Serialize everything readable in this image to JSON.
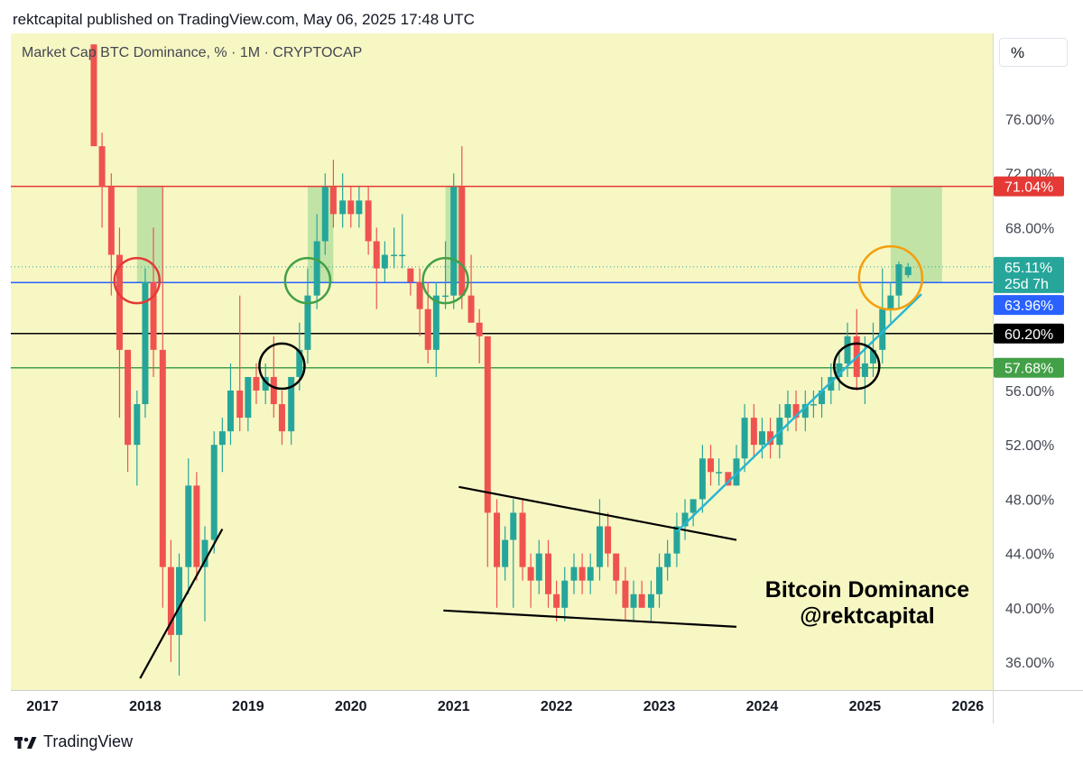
{
  "header": {
    "publisher": "rektcapital published on TradingView.com, May 06, 2025 17:48 UTC"
  },
  "symbol_info": "Market Cap BTC Dominance, % · 1M · CRYPTOCAP",
  "unit_button": "%",
  "footer": {
    "brand": "TradingView"
  },
  "annotation": {
    "line1": "Bitcoin Dominance",
    "line2": "@rektcapital"
  },
  "colors": {
    "background": "#f7f7c4",
    "up": "#26a69a",
    "down": "#ef5350",
    "resistance": "#e53935",
    "support": "#43a047",
    "mid": "#2962ff",
    "trend": "#26b6d4",
    "orange": "#f59e0b",
    "zone": "#b7e1a1"
  },
  "price_badges": {
    "resistance": "71.04%",
    "current": "65.11%",
    "countdown": "25d 7h",
    "blue_level": "63.96%",
    "black_level": "60.20%",
    "green_level": "57.68%"
  },
  "chart_data": {
    "type": "candlestick",
    "ylabel": "%",
    "ylim": [
      33.5,
      82
    ],
    "y_ticks": [
      "36.00%",
      "40.00%",
      "44.00%",
      "48.00%",
      "52.00%",
      "56.00%",
      "68.00%",
      "72.00%",
      "76.00%"
    ],
    "x_ticks": [
      "2017",
      "2018",
      "2019",
      "2020",
      "2021",
      "2022",
      "2023",
      "2024",
      "2025",
      "2026"
    ],
    "horizontal_levels": [
      {
        "label": "71.04%",
        "value": 71.04,
        "color": "#e53935"
      },
      {
        "label": "63.96%",
        "value": 63.96,
        "color": "#2962ff"
      },
      {
        "label": "60.20%",
        "value": 60.2,
        "color": "#000000"
      },
      {
        "label": "57.68%",
        "value": 57.68,
        "color": "#43a047"
      }
    ],
    "candles": [
      {
        "t": 2017.5,
        "o": 85,
        "h": 86,
        "l": 74,
        "c": 74
      },
      {
        "t": 2017.58,
        "o": 74,
        "h": 75,
        "l": 68,
        "c": 71
      },
      {
        "t": 2017.67,
        "o": 71,
        "h": 72,
        "l": 63,
        "c": 66
      },
      {
        "t": 2017.75,
        "o": 66,
        "h": 68,
        "l": 54,
        "c": 59
      },
      {
        "t": 2017.83,
        "o": 59,
        "h": 59,
        "l": 50,
        "c": 52
      },
      {
        "t": 2017.92,
        "o": 52,
        "h": 56,
        "l": 49,
        "c": 55
      },
      {
        "t": 2018.0,
        "o": 55,
        "h": 65,
        "l": 54,
        "c": 64
      },
      {
        "t": 2018.08,
        "o": 64,
        "h": 68,
        "l": 57,
        "c": 59
      },
      {
        "t": 2018.17,
        "o": 59,
        "h": 71,
        "l": 40,
        "c": 43
      },
      {
        "t": 2018.25,
        "o": 43,
        "h": 45,
        "l": 36,
        "c": 38
      },
      {
        "t": 2018.33,
        "o": 38,
        "h": 44,
        "l": 35,
        "c": 43
      },
      {
        "t": 2018.42,
        "o": 43,
        "h": 51,
        "l": 41,
        "c": 49
      },
      {
        "t": 2018.5,
        "o": 49,
        "h": 50,
        "l": 42,
        "c": 43
      },
      {
        "t": 2018.58,
        "o": 43,
        "h": 46,
        "l": 39,
        "c": 45
      },
      {
        "t": 2018.67,
        "o": 45,
        "h": 53,
        "l": 44,
        "c": 52
      },
      {
        "t": 2018.75,
        "o": 52,
        "h": 54,
        "l": 50,
        "c": 53
      },
      {
        "t": 2018.83,
        "o": 53,
        "h": 58,
        "l": 52,
        "c": 56
      },
      {
        "t": 2018.92,
        "o": 56,
        "h": 63,
        "l": 53,
        "c": 54
      },
      {
        "t": 2019.0,
        "o": 54,
        "h": 57,
        "l": 53,
        "c": 57
      },
      {
        "t": 2019.08,
        "o": 57,
        "h": 58,
        "l": 55,
        "c": 56
      },
      {
        "t": 2019.17,
        "o": 56,
        "h": 58,
        "l": 55,
        "c": 57
      },
      {
        "t": 2019.25,
        "o": 57,
        "h": 60,
        "l": 54,
        "c": 55
      },
      {
        "t": 2019.33,
        "o": 55,
        "h": 56,
        "l": 52,
        "c": 53
      },
      {
        "t": 2019.42,
        "o": 53,
        "h": 57,
        "l": 52,
        "c": 57
      },
      {
        "t": 2019.5,
        "o": 57,
        "h": 61,
        "l": 56,
        "c": 59
      },
      {
        "t": 2019.58,
        "o": 59,
        "h": 65,
        "l": 58,
        "c": 63
      },
      {
        "t": 2019.67,
        "o": 63,
        "h": 69,
        "l": 62,
        "c": 67
      },
      {
        "t": 2019.75,
        "o": 67,
        "h": 72,
        "l": 66,
        "c": 71
      },
      {
        "t": 2019.83,
        "o": 71,
        "h": 73,
        "l": 68,
        "c": 69
      },
      {
        "t": 2019.92,
        "o": 69,
        "h": 72,
        "l": 68,
        "c": 70
      },
      {
        "t": 2020.0,
        "o": 70,
        "h": 71,
        "l": 68,
        "c": 69
      },
      {
        "t": 2020.08,
        "o": 69,
        "h": 71,
        "l": 68,
        "c": 70
      },
      {
        "t": 2020.17,
        "o": 70,
        "h": 71,
        "l": 66,
        "c": 67
      },
      {
        "t": 2020.25,
        "o": 67,
        "h": 68,
        "l": 62,
        "c": 65
      },
      {
        "t": 2020.33,
        "o": 65,
        "h": 67,
        "l": 64,
        "c": 66
      },
      {
        "t": 2020.42,
        "o": 66,
        "h": 68,
        "l": 65,
        "c": 66
      },
      {
        "t": 2020.5,
        "o": 66,
        "h": 69,
        "l": 65,
        "c": 66
      },
      {
        "t": 2020.58,
        "o": 65,
        "h": 65,
        "l": 63,
        "c": 64
      },
      {
        "t": 2020.67,
        "o": 64,
        "h": 65,
        "l": 60,
        "c": 62
      },
      {
        "t": 2020.75,
        "o": 62,
        "h": 64,
        "l": 58,
        "c": 59
      },
      {
        "t": 2020.83,
        "o": 59,
        "h": 64,
        "l": 57,
        "c": 63
      },
      {
        "t": 2020.92,
        "o": 63,
        "h": 67,
        "l": 62,
        "c": 63
      },
      {
        "t": 2021.0,
        "o": 63,
        "h": 72,
        "l": 62,
        "c": 71
      },
      {
        "t": 2021.08,
        "o": 71,
        "h": 74,
        "l": 62,
        "c": 63
      },
      {
        "t": 2021.17,
        "o": 63,
        "h": 66,
        "l": 61,
        "c": 61
      },
      {
        "t": 2021.25,
        "o": 61,
        "h": 62,
        "l": 58,
        "c": 60
      },
      {
        "t": 2021.33,
        "o": 60,
        "h": 60,
        "l": 43,
        "c": 47
      },
      {
        "t": 2021.42,
        "o": 47,
        "h": 48,
        "l": 40,
        "c": 43
      },
      {
        "t": 2021.5,
        "o": 43,
        "h": 46,
        "l": 42,
        "c": 45
      },
      {
        "t": 2021.58,
        "o": 45,
        "h": 48,
        "l": 40,
        "c": 47
      },
      {
        "t": 2021.67,
        "o": 47,
        "h": 48,
        "l": 42,
        "c": 43
      },
      {
        "t": 2021.75,
        "o": 43,
        "h": 44,
        "l": 40,
        "c": 42
      },
      {
        "t": 2021.83,
        "o": 42,
        "h": 45,
        "l": 41,
        "c": 44
      },
      {
        "t": 2021.92,
        "o": 44,
        "h": 45,
        "l": 40,
        "c": 41
      },
      {
        "t": 2022.0,
        "o": 41,
        "h": 42,
        "l": 39,
        "c": 40
      },
      {
        "t": 2022.08,
        "o": 40,
        "h": 43,
        "l": 39,
        "c": 42
      },
      {
        "t": 2022.17,
        "o": 42,
        "h": 44,
        "l": 41,
        "c": 43
      },
      {
        "t": 2022.25,
        "o": 43,
        "h": 44,
        "l": 41,
        "c": 42
      },
      {
        "t": 2022.33,
        "o": 42,
        "h": 44,
        "l": 41,
        "c": 43
      },
      {
        "t": 2022.42,
        "o": 43,
        "h": 48,
        "l": 42,
        "c": 46
      },
      {
        "t": 2022.5,
        "o": 46,
        "h": 47,
        "l": 43,
        "c": 44
      },
      {
        "t": 2022.58,
        "o": 44,
        "h": 44,
        "l": 41,
        "c": 42
      },
      {
        "t": 2022.67,
        "o": 42,
        "h": 43,
        "l": 39,
        "c": 40
      },
      {
        "t": 2022.75,
        "o": 40,
        "h": 42,
        "l": 39,
        "c": 41
      },
      {
        "t": 2022.83,
        "o": 41,
        "h": 42,
        "l": 40,
        "c": 40
      },
      {
        "t": 2022.92,
        "o": 40,
        "h": 42,
        "l": 39,
        "c": 41
      },
      {
        "t": 2023.0,
        "o": 41,
        "h": 44,
        "l": 40,
        "c": 43
      },
      {
        "t": 2023.08,
        "o": 43,
        "h": 45,
        "l": 42,
        "c": 44
      },
      {
        "t": 2023.17,
        "o": 44,
        "h": 47,
        "l": 43,
        "c": 46
      },
      {
        "t": 2023.25,
        "o": 46,
        "h": 48,
        "l": 45,
        "c": 47
      },
      {
        "t": 2023.33,
        "o": 47,
        "h": 48,
        "l": 46,
        "c": 48
      },
      {
        "t": 2023.42,
        "o": 48,
        "h": 52,
        "l": 47,
        "c": 51
      },
      {
        "t": 2023.5,
        "o": 51,
        "h": 52,
        "l": 49,
        "c": 50
      },
      {
        "t": 2023.58,
        "o": 50,
        "h": 51,
        "l": 49,
        "c": 50
      },
      {
        "t": 2023.67,
        "o": 50,
        "h": 50,
        "l": 49,
        "c": 49
      },
      {
        "t": 2023.75,
        "o": 49,
        "h": 52,
        "l": 49,
        "c": 51
      },
      {
        "t": 2023.83,
        "o": 51,
        "h": 55,
        "l": 50,
        "c": 54
      },
      {
        "t": 2023.92,
        "o": 54,
        "h": 55,
        "l": 51,
        "c": 52
      },
      {
        "t": 2024.0,
        "o": 52,
        "h": 54,
        "l": 51,
        "c": 53
      },
      {
        "t": 2024.08,
        "o": 53,
        "h": 54,
        "l": 51,
        "c": 52
      },
      {
        "t": 2024.17,
        "o": 52,
        "h": 55,
        "l": 51,
        "c": 54
      },
      {
        "t": 2024.25,
        "o": 54,
        "h": 56,
        "l": 53,
        "c": 55
      },
      {
        "t": 2024.33,
        "o": 55,
        "h": 56,
        "l": 53,
        "c": 54
      },
      {
        "t": 2024.42,
        "o": 54,
        "h": 56,
        "l": 53,
        "c": 55
      },
      {
        "t": 2024.5,
        "o": 55,
        "h": 56,
        "l": 54,
        "c": 55
      },
      {
        "t": 2024.58,
        "o": 55,
        "h": 57,
        "l": 54,
        "c": 56
      },
      {
        "t": 2024.67,
        "o": 56,
        "h": 58,
        "l": 55,
        "c": 57
      },
      {
        "t": 2024.75,
        "o": 57,
        "h": 59,
        "l": 56,
        "c": 58
      },
      {
        "t": 2024.83,
        "o": 58,
        "h": 61,
        "l": 57,
        "c": 60
      },
      {
        "t": 2024.92,
        "o": 60,
        "h": 62,
        "l": 56,
        "c": 57
      },
      {
        "t": 2025.0,
        "o": 57,
        "h": 60,
        "l": 55,
        "c": 58
      },
      {
        "t": 2025.08,
        "o": 58,
        "h": 61,
        "l": 57,
        "c": 59
      },
      {
        "t": 2025.17,
        "o": 59,
        "h": 65,
        "l": 58,
        "c": 62
      },
      {
        "t": 2025.25,
        "o": 62,
        "h": 64,
        "l": 61,
        "c": 63
      },
      {
        "t": 2025.33,
        "o": 63,
        "h": 65.5,
        "l": 62,
        "c": 65.3
      },
      {
        "t": 2025.42,
        "o": 64.5,
        "h": 65.4,
        "l": 64.3,
        "c": 65.11
      }
    ]
  }
}
